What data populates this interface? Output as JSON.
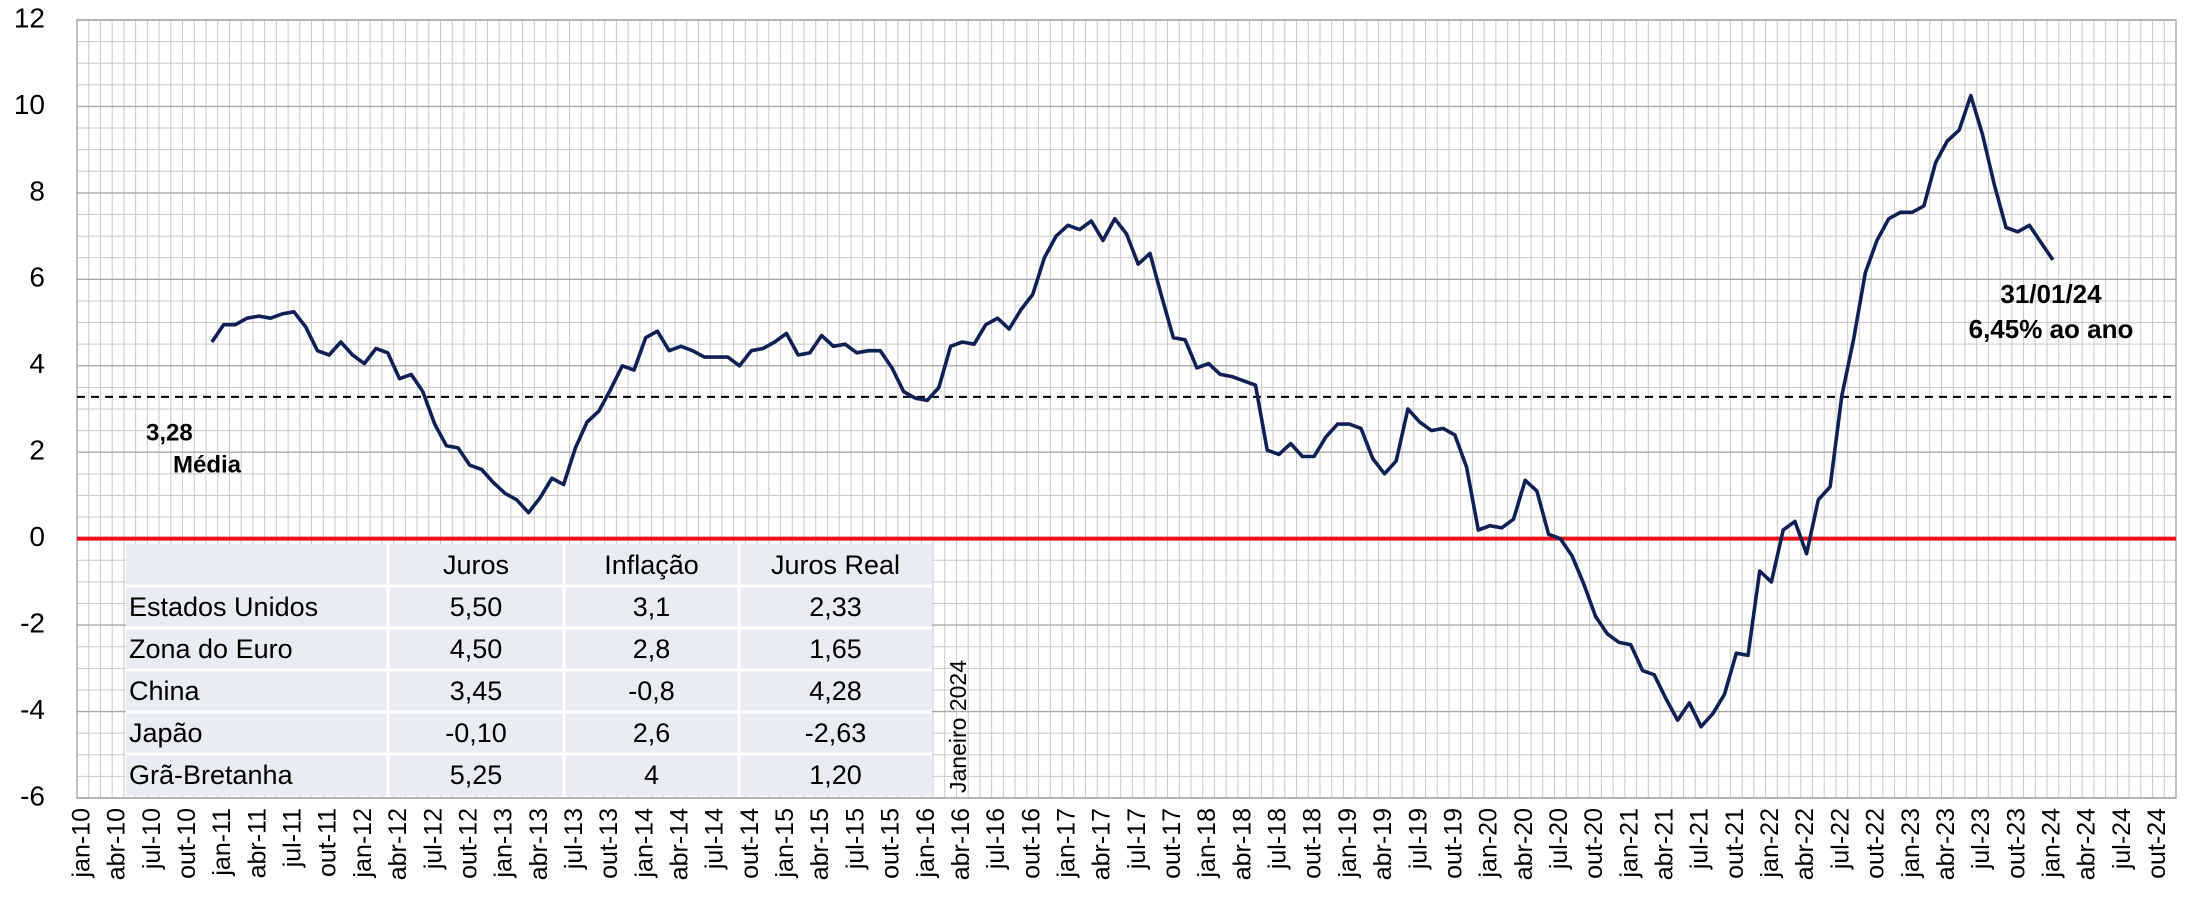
{
  "chart_data": {
    "type": "line",
    "categories": [
      "jan-10",
      null,
      null,
      "abr-10",
      null,
      null,
      "jul-10",
      null,
      null,
      "out-10",
      null,
      null,
      "jan-11",
      null,
      null,
      "abr-11",
      null,
      null,
      "jul-11",
      null,
      null,
      "out-11",
      null,
      null,
      "jan-12",
      null,
      null,
      "abr-12",
      null,
      null,
      "jul-12",
      null,
      null,
      "out-12",
      null,
      null,
      "jan-13",
      null,
      null,
      "abr-13",
      null,
      null,
      "jul-13",
      null,
      null,
      "out-13",
      null,
      null,
      "jan-14",
      null,
      null,
      "abr-14",
      null,
      null,
      "jul-14",
      null,
      null,
      "out-14",
      null,
      null,
      "jan-15",
      null,
      null,
      "abr-15",
      null,
      null,
      "jul-15",
      null,
      null,
      "out-15",
      null,
      null,
      "jan-16",
      null,
      null,
      "abr-16",
      null,
      null,
      "jul-16",
      null,
      null,
      "out-16",
      null,
      null,
      "jan-17",
      null,
      null,
      "abr-17",
      null,
      null,
      "jul-17",
      null,
      null,
      "out-17",
      null,
      null,
      "jan-18",
      null,
      null,
      "abr-18",
      null,
      null,
      "jul-18",
      null,
      null,
      "out-18",
      null,
      null,
      "jan-19",
      null,
      null,
      "abr-19",
      null,
      null,
      "jul-19",
      null,
      null,
      "out-19",
      null,
      null,
      "jan-20",
      null,
      null,
      "abr-20",
      null,
      null,
      "jul-20",
      null,
      null,
      "out-20",
      null,
      null,
      "jan-21",
      null,
      null,
      "abr-21",
      null,
      null,
      "jul-21",
      null,
      null,
      "out-21",
      null,
      null,
      "jan-22",
      null,
      null,
      "abr-22",
      null,
      null,
      "jul-22",
      null,
      null,
      "out-22",
      null,
      null,
      "jan-23",
      null,
      null,
      "abr-23",
      null,
      null,
      "jul-23",
      null,
      null,
      "out-23",
      null,
      null,
      "jan-24",
      null,
      null,
      "abr-24",
      null,
      null,
      "jul-24",
      null,
      null,
      "out-24",
      null
    ],
    "series": [
      {
        "color": "#0d2157",
        "values": [
          null,
          null,
          null,
          null,
          null,
          null,
          null,
          null,
          null,
          null,
          null,
          4.55,
          4.95,
          4.95,
          5.1,
          5.15,
          5.1,
          5.2,
          5.25,
          4.9,
          4.35,
          4.25,
          4.55,
          4.25,
          4.05,
          4.4,
          4.3,
          3.7,
          3.8,
          3.4,
          2.65,
          2.15,
          2.1,
          1.7,
          1.6,
          1.3,
          1.05,
          0.9,
          0.6,
          0.95,
          1.4,
          1.25,
          2.1,
          2.7,
          2.95,
          3.45,
          4.0,
          3.9,
          4.65,
          4.8,
          4.35,
          4.45,
          4.35,
          4.2,
          4.2,
          4.2,
          4.0,
          4.35,
          4.4,
          4.55,
          4.75,
          4.25,
          4.3,
          4.7,
          4.45,
          4.5,
          4.3,
          4.35,
          4.35,
          3.95,
          3.4,
          3.25,
          3.2,
          3.5,
          4.45,
          4.55,
          4.5,
          4.95,
          5.1,
          4.85,
          5.3,
          5.65,
          6.5,
          7.0,
          7.25,
          7.15,
          7.35,
          6.9,
          7.4,
          7.05,
          6.35,
          6.6,
          5.6,
          4.65,
          4.6,
          3.95,
          4.05,
          3.8,
          3.75,
          3.65,
          3.55,
          2.05,
          1.95,
          2.2,
          1.9,
          1.9,
          2.35,
          2.65,
          2.65,
          2.55,
          1.85,
          1.5,
          1.8,
          3.0,
          2.7,
          2.5,
          2.55,
          2.4,
          1.65,
          0.2,
          0.3,
          0.25,
          0.45,
          1.35,
          1.1,
          0.1,
          0.0,
          -0.4,
          -1.05,
          -1.8,
          -2.2,
          -2.4,
          -2.45,
          -3.05,
          -3.15,
          -3.7,
          -4.2,
          -3.8,
          -4.35,
          -4.05,
          -3.6,
          -2.65,
          -2.7,
          -0.75,
          -1.0,
          0.2,
          0.4,
          -0.35,
          0.9,
          1.2,
          3.3,
          4.6,
          6.15,
          6.9,
          7.4,
          7.55,
          7.55,
          7.7,
          8.7,
          9.2,
          9.45,
          10.25,
          9.35,
          8.2,
          7.2,
          7.1,
          7.25,
          6.85,
          6.45,
          null,
          null,
          null,
          null,
          null,
          null,
          null,
          null,
          null,
          null
        ]
      }
    ],
    "ylim": [
      -6,
      12
    ],
    "yticks": [
      -6,
      -4,
      -2,
      0,
      2,
      4,
      6,
      8,
      10,
      12
    ],
    "y_minor_grid": [
      -5.5,
      -5,
      -4.5,
      -3.5,
      -3,
      -2.5,
      -1.5,
      -1,
      -0.5,
      0.5,
      1,
      1.5,
      2.5,
      3,
      3.5,
      4.5,
      5,
      5.5,
      6.5,
      7,
      7.5,
      8.5,
      9,
      9.5,
      10.5,
      11,
      11.5
    ],
    "grid": true,
    "mean": {
      "value": 3.28,
      "label": "3,28",
      "name": "Média"
    },
    "zero_line": {
      "value": 0,
      "color": "#e8141b"
    },
    "annotations": [
      "31/01/24",
      "6,45% ao ano"
    ],
    "note": "Janeiro 2024"
  },
  "table": {
    "columns": [
      "Juros",
      "Inflação",
      "Juros Real"
    ],
    "rows": [
      {
        "label": "Estados Unidos",
        "cells": [
          "5,50",
          "3,1",
          "2,33"
        ]
      },
      {
        "label": "Zona do Euro",
        "cells": [
          "4,50",
          "2,8",
          "1,65"
        ]
      },
      {
        "label": "China",
        "cells": [
          "3,45",
          "-0,8",
          "4,28"
        ]
      },
      {
        "label": "Japão",
        "cells": [
          "-0,10",
          "2,6",
          "-2,63"
        ]
      },
      {
        "label": "Grã-Bretanha",
        "cells": [
          "5,25",
          "4",
          "1,20"
        ]
      }
    ]
  }
}
